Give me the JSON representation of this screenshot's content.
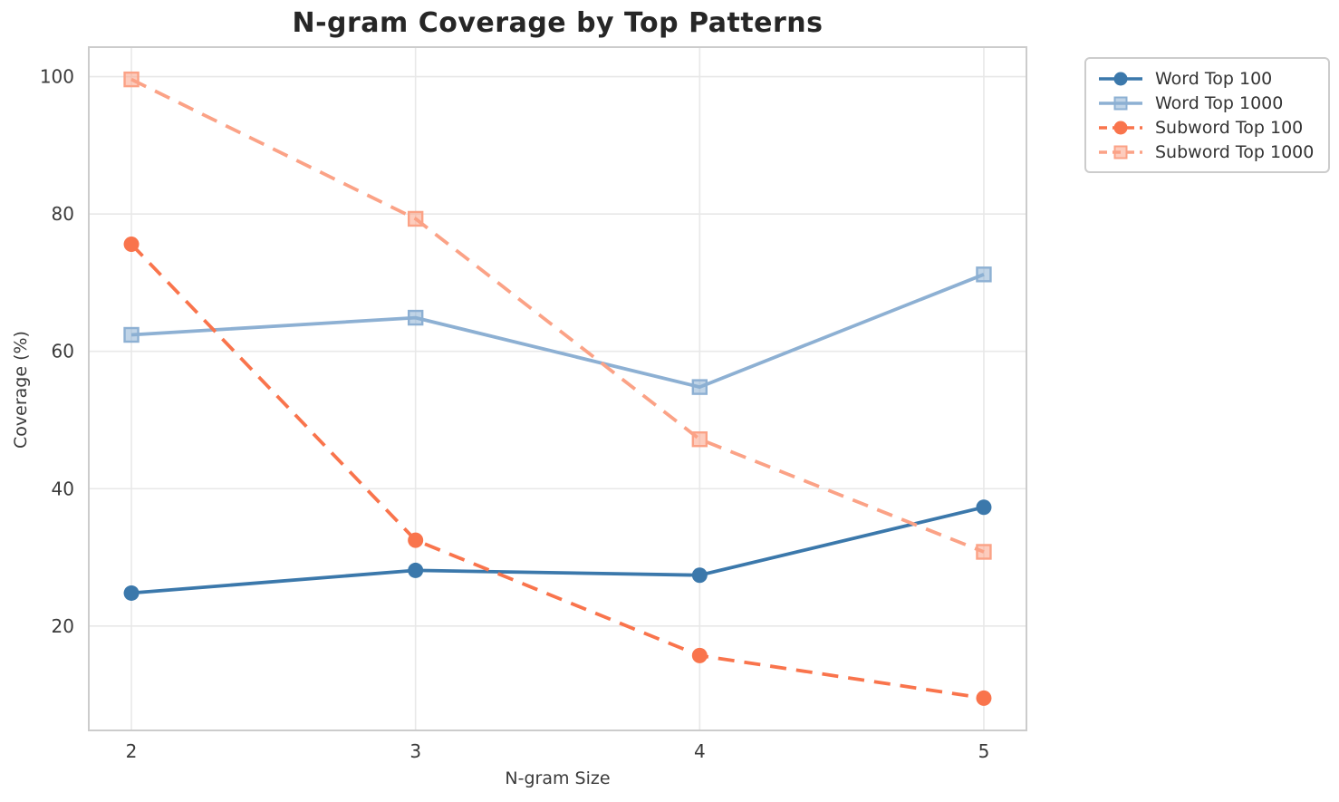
{
  "title": "N-gram Coverage by Top Patterns",
  "chart_data": {
    "type": "line",
    "title": "N-gram Coverage by Top Patterns",
    "xlabel": "N-gram Size",
    "ylabel": "Coverage (%)",
    "x": [
      2,
      3,
      4,
      5
    ],
    "series": [
      {
        "name": "Word Top 100",
        "values": [
          24.8,
          28.1,
          27.4,
          37.3
        ],
        "color": "#3b78ab",
        "line_style": "solid",
        "marker": "circle"
      },
      {
        "name": "Word Top 1000",
        "values": [
          62.4,
          64.9,
          54.8,
          71.2
        ],
        "color": "#8db0d3",
        "line_style": "solid",
        "marker": "square"
      },
      {
        "name": "Subword Top 100",
        "values": [
          75.6,
          32.5,
          15.7,
          9.5
        ],
        "color": "#f9744c",
        "line_style": "dashed",
        "marker": "circle"
      },
      {
        "name": "Subword Top 1000",
        "values": [
          99.6,
          79.3,
          47.2,
          30.8
        ],
        "color": "#fba286",
        "line_style": "dashed",
        "marker": "square"
      }
    ],
    "xticks": [
      "2",
      "3",
      "4",
      "5"
    ],
    "yticks": [
      20,
      40,
      60,
      80,
      100
    ],
    "xlim": [
      1.85,
      5.15
    ],
    "ylim": [
      4.8,
      104.3
    ],
    "grid": true,
    "legend_position": "outside-top-right",
    "colors": {
      "grid": "#e8e8e8",
      "spine": "#cccccc",
      "tick_text": "#3a3a3a",
      "title_text": "#262626",
      "background": "#ffffff"
    }
  }
}
